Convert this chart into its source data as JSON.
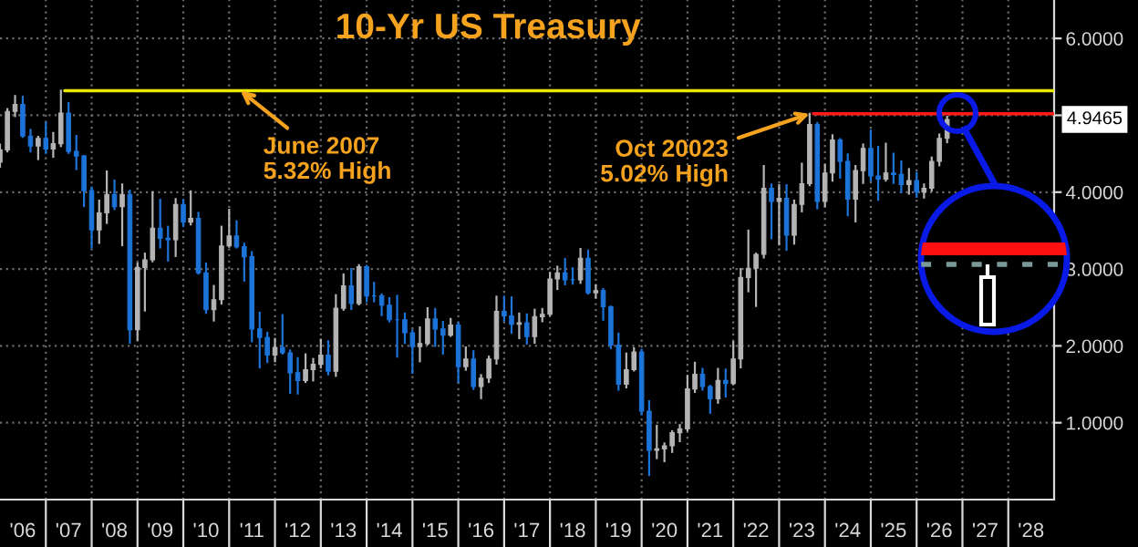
{
  "chart_data": {
    "type": "candlestick",
    "title": "10-Yr US Treasury",
    "x": [
      "2006-01",
      "2006-03",
      "2006-05",
      "2006-07",
      "2006-09",
      "2006-11",
      "2007-01",
      "2007-03",
      "2007-05",
      "2007-07",
      "2007-09",
      "2007-11",
      "2008-01",
      "2008-03",
      "2008-05",
      "2008-07",
      "2008-09",
      "2008-11",
      "2009-01",
      "2009-03",
      "2009-05",
      "2009-07",
      "2009-09",
      "2009-11",
      "2010-01",
      "2010-03",
      "2010-05",
      "2010-07",
      "2010-09",
      "2010-11",
      "2011-01",
      "2011-03",
      "2011-05",
      "2011-07",
      "2011-09",
      "2011-11",
      "2012-01",
      "2012-03",
      "2012-05",
      "2012-07",
      "2012-09",
      "2012-11",
      "2013-01",
      "2013-03",
      "2013-05",
      "2013-07",
      "2013-09",
      "2013-11",
      "2014-01",
      "2014-03",
      "2014-05",
      "2014-07",
      "2014-09",
      "2014-11",
      "2015-01",
      "2015-03",
      "2015-05",
      "2015-07",
      "2015-09",
      "2015-11",
      "2016-01",
      "2016-03",
      "2016-05",
      "2016-07",
      "2016-09",
      "2016-11",
      "2017-01",
      "2017-03",
      "2017-05",
      "2017-07",
      "2017-09",
      "2017-11",
      "2018-01",
      "2018-03",
      "2018-05",
      "2018-07",
      "2018-09",
      "2018-11",
      "2019-01",
      "2019-03",
      "2019-05",
      "2019-07",
      "2019-09",
      "2019-11",
      "2020-01",
      "2020-03",
      "2020-05",
      "2020-07",
      "2020-09",
      "2020-11",
      "2021-01",
      "2021-03",
      "2021-05",
      "2021-07",
      "2021-09",
      "2021-11",
      "2022-01",
      "2022-03",
      "2022-05",
      "2022-07",
      "2022-09",
      "2022-11",
      "2023-01",
      "2023-03",
      "2023-05",
      "2023-07",
      "2023-09",
      "2023-11",
      "2024-01",
      "2024-03",
      "2024-05",
      "2024-07",
      "2024-09",
      "2024-11",
      "2025-01",
      "2025-03",
      "2025-05",
      "2025-07",
      "2025-09",
      "2025-11",
      "2026-01",
      "2026-03",
      "2026-05",
      "2026-07",
      "2026-09"
    ],
    "ohlc": [
      [
        4.39,
        4.62,
        4.33,
        4.55
      ],
      [
        4.55,
        5.08,
        4.53,
        5.05
      ],
      [
        5.05,
        5.25,
        4.99,
        5.14
      ],
      [
        5.14,
        5.24,
        4.72,
        4.73
      ],
      [
        4.73,
        4.81,
        4.53,
        4.6
      ],
      [
        4.6,
        4.72,
        4.43,
        4.7
      ],
      [
        4.7,
        4.9,
        4.51,
        4.56
      ],
      [
        4.56,
        4.77,
        4.46,
        4.63
      ],
      [
        4.63,
        5.32,
        4.6,
        5.03
      ],
      [
        5.03,
        5.16,
        4.51,
        4.53
      ],
      [
        4.53,
        4.73,
        4.3,
        4.47
      ],
      [
        4.47,
        4.47,
        3.82,
        4.02
      ],
      [
        4.02,
        4.06,
        3.28,
        3.51
      ],
      [
        3.51,
        3.89,
        3.34,
        3.73
      ],
      [
        3.73,
        4.27,
        3.6,
        3.97
      ],
      [
        3.97,
        4.15,
        3.78,
        3.81
      ],
      [
        3.81,
        4.1,
        3.31,
        3.97
      ],
      [
        3.97,
        4.02,
        2.04,
        2.21
      ],
      [
        2.21,
        3.07,
        2.08,
        3.02
      ],
      [
        3.02,
        3.2,
        2.46,
        3.12
      ],
      [
        3.12,
        4.0,
        3.1,
        3.53
      ],
      [
        3.53,
        3.9,
        3.28,
        3.4
      ],
      [
        3.4,
        3.55,
        3.11,
        3.38
      ],
      [
        3.38,
        3.91,
        3.17,
        3.84
      ],
      [
        3.84,
        3.9,
        3.56,
        3.61
      ],
      [
        3.61,
        4.01,
        3.58,
        3.66
      ],
      [
        3.66,
        3.73,
        2.94,
        2.95
      ],
      [
        2.95,
        3.07,
        2.43,
        2.47
      ],
      [
        2.47,
        2.78,
        2.33,
        2.6
      ],
      [
        2.6,
        3.55,
        2.55,
        3.3
      ],
      [
        3.3,
        3.77,
        3.29,
        3.43
      ],
      [
        3.43,
        3.62,
        3.28,
        3.29
      ],
      [
        3.29,
        3.33,
        2.85,
        3.16
      ],
      [
        3.16,
        3.22,
        2.06,
        2.22
      ],
      [
        2.22,
        2.43,
        1.72,
        2.11
      ],
      [
        2.11,
        2.17,
        1.79,
        1.88
      ],
      [
        1.88,
        2.09,
        1.8,
        1.98
      ],
      [
        1.98,
        2.4,
        1.9,
        1.91
      ],
      [
        1.91,
        1.94,
        1.39,
        1.65
      ],
      [
        1.65,
        1.84,
        1.38,
        1.55
      ],
      [
        1.55,
        1.89,
        1.53,
        1.69
      ],
      [
        1.69,
        1.83,
        1.55,
        1.76
      ],
      [
        1.76,
        2.08,
        1.72,
        1.88
      ],
      [
        1.88,
        2.06,
        1.63,
        1.67
      ],
      [
        1.67,
        2.66,
        1.61,
        2.49
      ],
      [
        2.49,
        2.93,
        2.47,
        2.78
      ],
      [
        2.78,
        3.0,
        2.48,
        2.55
      ],
      [
        2.55,
        3.05,
        2.54,
        3.03
      ],
      [
        3.03,
        3.04,
        2.58,
        2.65
      ],
      [
        2.65,
        2.82,
        2.58,
        2.65
      ],
      [
        2.65,
        2.67,
        2.4,
        2.53
      ],
      [
        2.53,
        2.62,
        2.32,
        2.34
      ],
      [
        2.34,
        2.65,
        1.86,
        2.34
      ],
      [
        2.34,
        2.42,
        2.04,
        2.17
      ],
      [
        2.17,
        2.2,
        1.65,
        1.99
      ],
      [
        1.99,
        2.24,
        1.8,
        2.03
      ],
      [
        2.03,
        2.49,
        2.02,
        2.35
      ],
      [
        2.35,
        2.48,
        2.0,
        2.22
      ],
      [
        2.22,
        2.31,
        1.9,
        2.14
      ],
      [
        2.14,
        2.35,
        2.13,
        2.27
      ],
      [
        2.27,
        2.3,
        1.53,
        1.73
      ],
      [
        1.73,
        1.98,
        1.69,
        1.83
      ],
      [
        1.83,
        1.93,
        1.44,
        1.47
      ],
      [
        1.47,
        1.62,
        1.32,
        1.58
      ],
      [
        1.58,
        1.86,
        1.53,
        1.83
      ],
      [
        1.83,
        2.64,
        1.77,
        2.45
      ],
      [
        2.45,
        2.64,
        2.33,
        2.39
      ],
      [
        2.39,
        2.63,
        2.17,
        2.28
      ],
      [
        2.28,
        2.42,
        2.1,
        2.3
      ],
      [
        2.3,
        2.41,
        2.03,
        2.12
      ],
      [
        2.12,
        2.47,
        2.04,
        2.38
      ],
      [
        2.38,
        2.48,
        2.32,
        2.41
      ],
      [
        2.41,
        2.95,
        2.4,
        2.87
      ],
      [
        2.87,
        3.03,
        2.74,
        2.95
      ],
      [
        2.95,
        3.13,
        2.8,
        2.86
      ],
      [
        2.86,
        3.01,
        2.81,
        2.86
      ],
      [
        2.86,
        3.26,
        2.82,
        3.14
      ],
      [
        3.14,
        3.24,
        2.68,
        2.69
      ],
      [
        2.69,
        2.79,
        2.63,
        2.72
      ],
      [
        2.72,
        2.74,
        2.34,
        2.51
      ],
      [
        2.51,
        2.51,
        1.97,
        2.01
      ],
      [
        2.01,
        2.16,
        1.43,
        1.5
      ],
      [
        1.5,
        1.9,
        1.46,
        1.69
      ],
      [
        1.69,
        1.97,
        1.68,
        1.92
      ],
      [
        1.92,
        1.95,
        1.11,
        1.15
      ],
      [
        1.15,
        1.28,
        0.32,
        0.64
      ],
      [
        0.64,
        0.96,
        0.54,
        0.66
      ],
      [
        0.66,
        0.73,
        0.5,
        0.7
      ],
      [
        0.7,
        0.89,
        0.62,
        0.87
      ],
      [
        0.87,
        0.97,
        0.76,
        0.92
      ],
      [
        0.92,
        1.61,
        0.9,
        1.44
      ],
      [
        1.44,
        1.78,
        1.4,
        1.63
      ],
      [
        1.63,
        1.7,
        1.43,
        1.47
      ],
      [
        1.47,
        1.48,
        1.13,
        1.31
      ],
      [
        1.31,
        1.7,
        1.26,
        1.55
      ],
      [
        1.55,
        1.69,
        1.34,
        1.51
      ],
      [
        1.51,
        2.05,
        1.5,
        1.83
      ],
      [
        1.83,
        3.0,
        1.72,
        2.89
      ],
      [
        2.89,
        3.5,
        2.71,
        3.01
      ],
      [
        3.01,
        3.2,
        2.52,
        3.19
      ],
      [
        3.19,
        4.34,
        3.15,
        4.05
      ],
      [
        4.05,
        4.1,
        3.4,
        3.88
      ],
      [
        3.88,
        4.09,
        3.32,
        3.92
      ],
      [
        3.92,
        4.09,
        3.25,
        3.44
      ],
      [
        3.44,
        3.89,
        3.33,
        3.84
      ],
      [
        3.84,
        4.37,
        3.75,
        4.11
      ],
      [
        4.11,
        5.02,
        4.09,
        4.88
      ],
      [
        4.88,
        4.9,
        3.79,
        3.88
      ],
      [
        3.88,
        4.35,
        3.82,
        4.25
      ],
      [
        4.25,
        4.74,
        4.15,
        4.68
      ],
      [
        4.68,
        4.69,
        4.19,
        4.4
      ],
      [
        4.4,
        4.49,
        3.7,
        3.91
      ],
      [
        3.91,
        4.34,
        3.62,
        4.28
      ],
      [
        4.28,
        4.62,
        4.12,
        4.57
      ],
      [
        4.57,
        4.8,
        4.15,
        4.21
      ],
      [
        4.21,
        4.59,
        3.9,
        4.17
      ],
      [
        4.17,
        4.63,
        4.15,
        4.25
      ],
      [
        4.25,
        4.5,
        4.12,
        4.23
      ],
      [
        4.23,
        4.4,
        4.0,
        4.1
      ],
      [
        4.1,
        4.3,
        3.98,
        4.15
      ],
      [
        4.15,
        4.25,
        3.94,
        4.0
      ],
      [
        4.0,
        4.1,
        3.93,
        4.05
      ],
      [
        4.05,
        4.45,
        4.02,
        4.4
      ],
      [
        4.4,
        4.75,
        4.35,
        4.7
      ],
      [
        4.7,
        4.98,
        4.65,
        4.9465
      ]
    ],
    "colors": [
      "#b4b4b4",
      "#b4b4b4",
      "#b4b4b4",
      "#1c74d9",
      "#1c74d9",
      "#b4b4b4",
      "#1c74d9",
      "#b4b4b4",
      "#b4b4b4",
      "#1c74d9",
      "#1c74d9",
      "#1c74d9",
      "#1c74d9",
      "#b4b4b4",
      "#b4b4b4",
      "#1c74d9",
      "#b4b4b4",
      "#1c74d9",
      "#b4b4b4",
      "#b4b4b4",
      "#b4b4b4",
      "#1c74d9",
      "#1c74d9",
      "#b4b4b4",
      "#1c74d9",
      "#b4b4b4",
      "#1c74d9",
      "#1c74d9",
      "#b4b4b4",
      "#b4b4b4",
      "#b4b4b4",
      "#1c74d9",
      "#1c74d9",
      "#1c74d9",
      "#1c74d9",
      "#1c74d9",
      "#b4b4b4",
      "#1c74d9",
      "#1c74d9",
      "#1c74d9",
      "#b4b4b4",
      "#b4b4b4",
      "#b4b4b4",
      "#1c74d9",
      "#b4b4b4",
      "#b4b4b4",
      "#1c74d9",
      "#b4b4b4",
      "#1c74d9",
      "#1c74d9",
      "#1c74d9",
      "#1c74d9",
      "#1c74d9",
      "#1c74d9",
      "#1c74d9",
      "#b4b4b4",
      "#b4b4b4",
      "#1c74d9",
      "#1c74d9",
      "#b4b4b4",
      "#1c74d9",
      "#b4b4b4",
      "#1c74d9",
      "#b4b4b4",
      "#b4b4b4",
      "#b4b4b4",
      "#1c74d9",
      "#1c74d9",
      "#b4b4b4",
      "#1c74d9",
      "#b4b4b4",
      "#b4b4b4",
      "#b4b4b4",
      "#b4b4b4",
      "#1c74d9",
      "#1c74d9",
      "#b4b4b4",
      "#1c74d9",
      "#b4b4b4",
      "#1c74d9",
      "#1c74d9",
      "#1c74d9",
      "#b4b4b4",
      "#b4b4b4",
      "#1c74d9",
      "#1c74d9",
      "#b4b4b4",
      "#b4b4b4",
      "#b4b4b4",
      "#b4b4b4",
      "#b4b4b4",
      "#b4b4b4",
      "#1c74d9",
      "#1c74d9",
      "#b4b4b4",
      "#1c74d9",
      "#b4b4b4",
      "#b4b4b4",
      "#b4b4b4",
      "#b4b4b4",
      "#b4b4b4",
      "#1c74d9",
      "#b4b4b4",
      "#1c74d9",
      "#b4b4b4",
      "#b4b4b4",
      "#b4b4b4",
      "#1c74d9",
      "#b4b4b4",
      "#b4b4b4",
      "#1c74d9",
      "#1c74d9",
      "#b4b4b4",
      "#b4b4b4",
      "#1c74d9",
      "#1c74d9",
      "#b4b4b4",
      "#1c74d9",
      "#1c74d9",
      "#b4b4b4",
      "#1c74d9",
      "#b4b4b4",
      "#b4b4b4",
      "#b4b4b4",
      "#b4b4b4"
    ],
    "series": [
      {
        "type": "line",
        "color": "#e8e800",
        "x": [
          "2007-06",
          "2029-01"
        ],
        "values": [
          5.32,
          5.32
        ]
      },
      {
        "type": "line",
        "color": "#ff1a1a",
        "x": [
          "2023-10",
          "2029-01"
        ],
        "values": [
          5.02,
          5.02
        ]
      }
    ],
    "xlim": [
      "2006-01-01",
      "2029-01-01"
    ],
    "xticks": [
      {
        "value": "2006-07-01",
        "label": "'06"
      },
      {
        "value": "2007-07-01",
        "label": "'07"
      },
      {
        "value": "2008-07-01",
        "label": "'08"
      },
      {
        "value": "2009-07-01",
        "label": "'09"
      },
      {
        "value": "2010-07-01",
        "label": "'10"
      },
      {
        "value": "2011-07-01",
        "label": "'11"
      },
      {
        "value": "2012-07-01",
        "label": "'12"
      },
      {
        "value": "2013-07-01",
        "label": "'13"
      },
      {
        "value": "2014-07-01",
        "label": "'14"
      },
      {
        "value": "2015-07-01",
        "label": "'15"
      },
      {
        "value": "2016-07-01",
        "label": "'16"
      },
      {
        "value": "2017-07-01",
        "label": "'17"
      },
      {
        "value": "2018-07-01",
        "label": "'18"
      },
      {
        "value": "2019-07-01",
        "label": "'19"
      },
      {
        "value": "2020-07-01",
        "label": "'20"
      },
      {
        "value": "2021-07-01",
        "label": "'21"
      },
      {
        "value": "2022-07-01",
        "label": "'22"
      },
      {
        "value": "2023-07-01",
        "label": "'23"
      },
      {
        "value": "2024-07-01",
        "label": "'24"
      },
      {
        "value": "2025-07-01",
        "label": "'25"
      },
      {
        "value": "2026-07-01",
        "label": "'26"
      },
      {
        "value": "2027-07-01",
        "label": "'27"
      },
      {
        "value": "2028-07-01",
        "label": "'28"
      },
      {
        "value": "2007-01-01",
        "label": null
      },
      {
        "value": "2008-01-01",
        "label": null
      },
      {
        "value": "2009-01-01",
        "label": null
      },
      {
        "value": "2010-01-01",
        "label": null
      },
      {
        "value": "2011-01-01",
        "label": null
      },
      {
        "value": "2012-01-01",
        "label": null
      },
      {
        "value": "2013-01-01",
        "label": null
      },
      {
        "value": "2014-01-01",
        "label": null
      },
      {
        "value": "2015-01-01",
        "label": null
      },
      {
        "value": "2016-01-01",
        "label": null
      },
      {
        "value": "2017-01-01",
        "label": null
      },
      {
        "value": "2018-01-01",
        "label": null
      },
      {
        "value": "2019-01-01",
        "label": null
      },
      {
        "value": "2020-01-01",
        "label": null
      },
      {
        "value": "2021-01-01",
        "label": null
      },
      {
        "value": "2022-01-01",
        "label": null
      },
      {
        "value": "2023-01-01",
        "label": null
      },
      {
        "value": "2024-01-01",
        "label": null
      },
      {
        "value": "2025-01-01",
        "label": null
      },
      {
        "value": "2026-01-01",
        "label": null
      },
      {
        "value": "2027-01-01",
        "label": null
      },
      {
        "value": "2028-01-01",
        "label": null
      }
    ],
    "ylim": [
      0,
      6.5
    ],
    "yticks": [
      {
        "value": 1,
        "label": "1.0000"
      },
      {
        "value": 2,
        "label": "2.0000"
      },
      {
        "value": 3,
        "label": "3.0000"
      },
      {
        "value": 4,
        "label": "4.0000"
      },
      {
        "value": 5,
        "label": null
      },
      {
        "value": 6,
        "label": "6.0000"
      }
    ],
    "grid": true,
    "annotations": [
      {
        "text": "June 2007\n5.32% High",
        "x": "2011-04",
        "y": 5.32
      },
      {
        "text": "Oct 20023\n5.02% High",
        "x": "2023-09",
        "y": 5.02
      },
      "4.9465"
    ]
  }
}
